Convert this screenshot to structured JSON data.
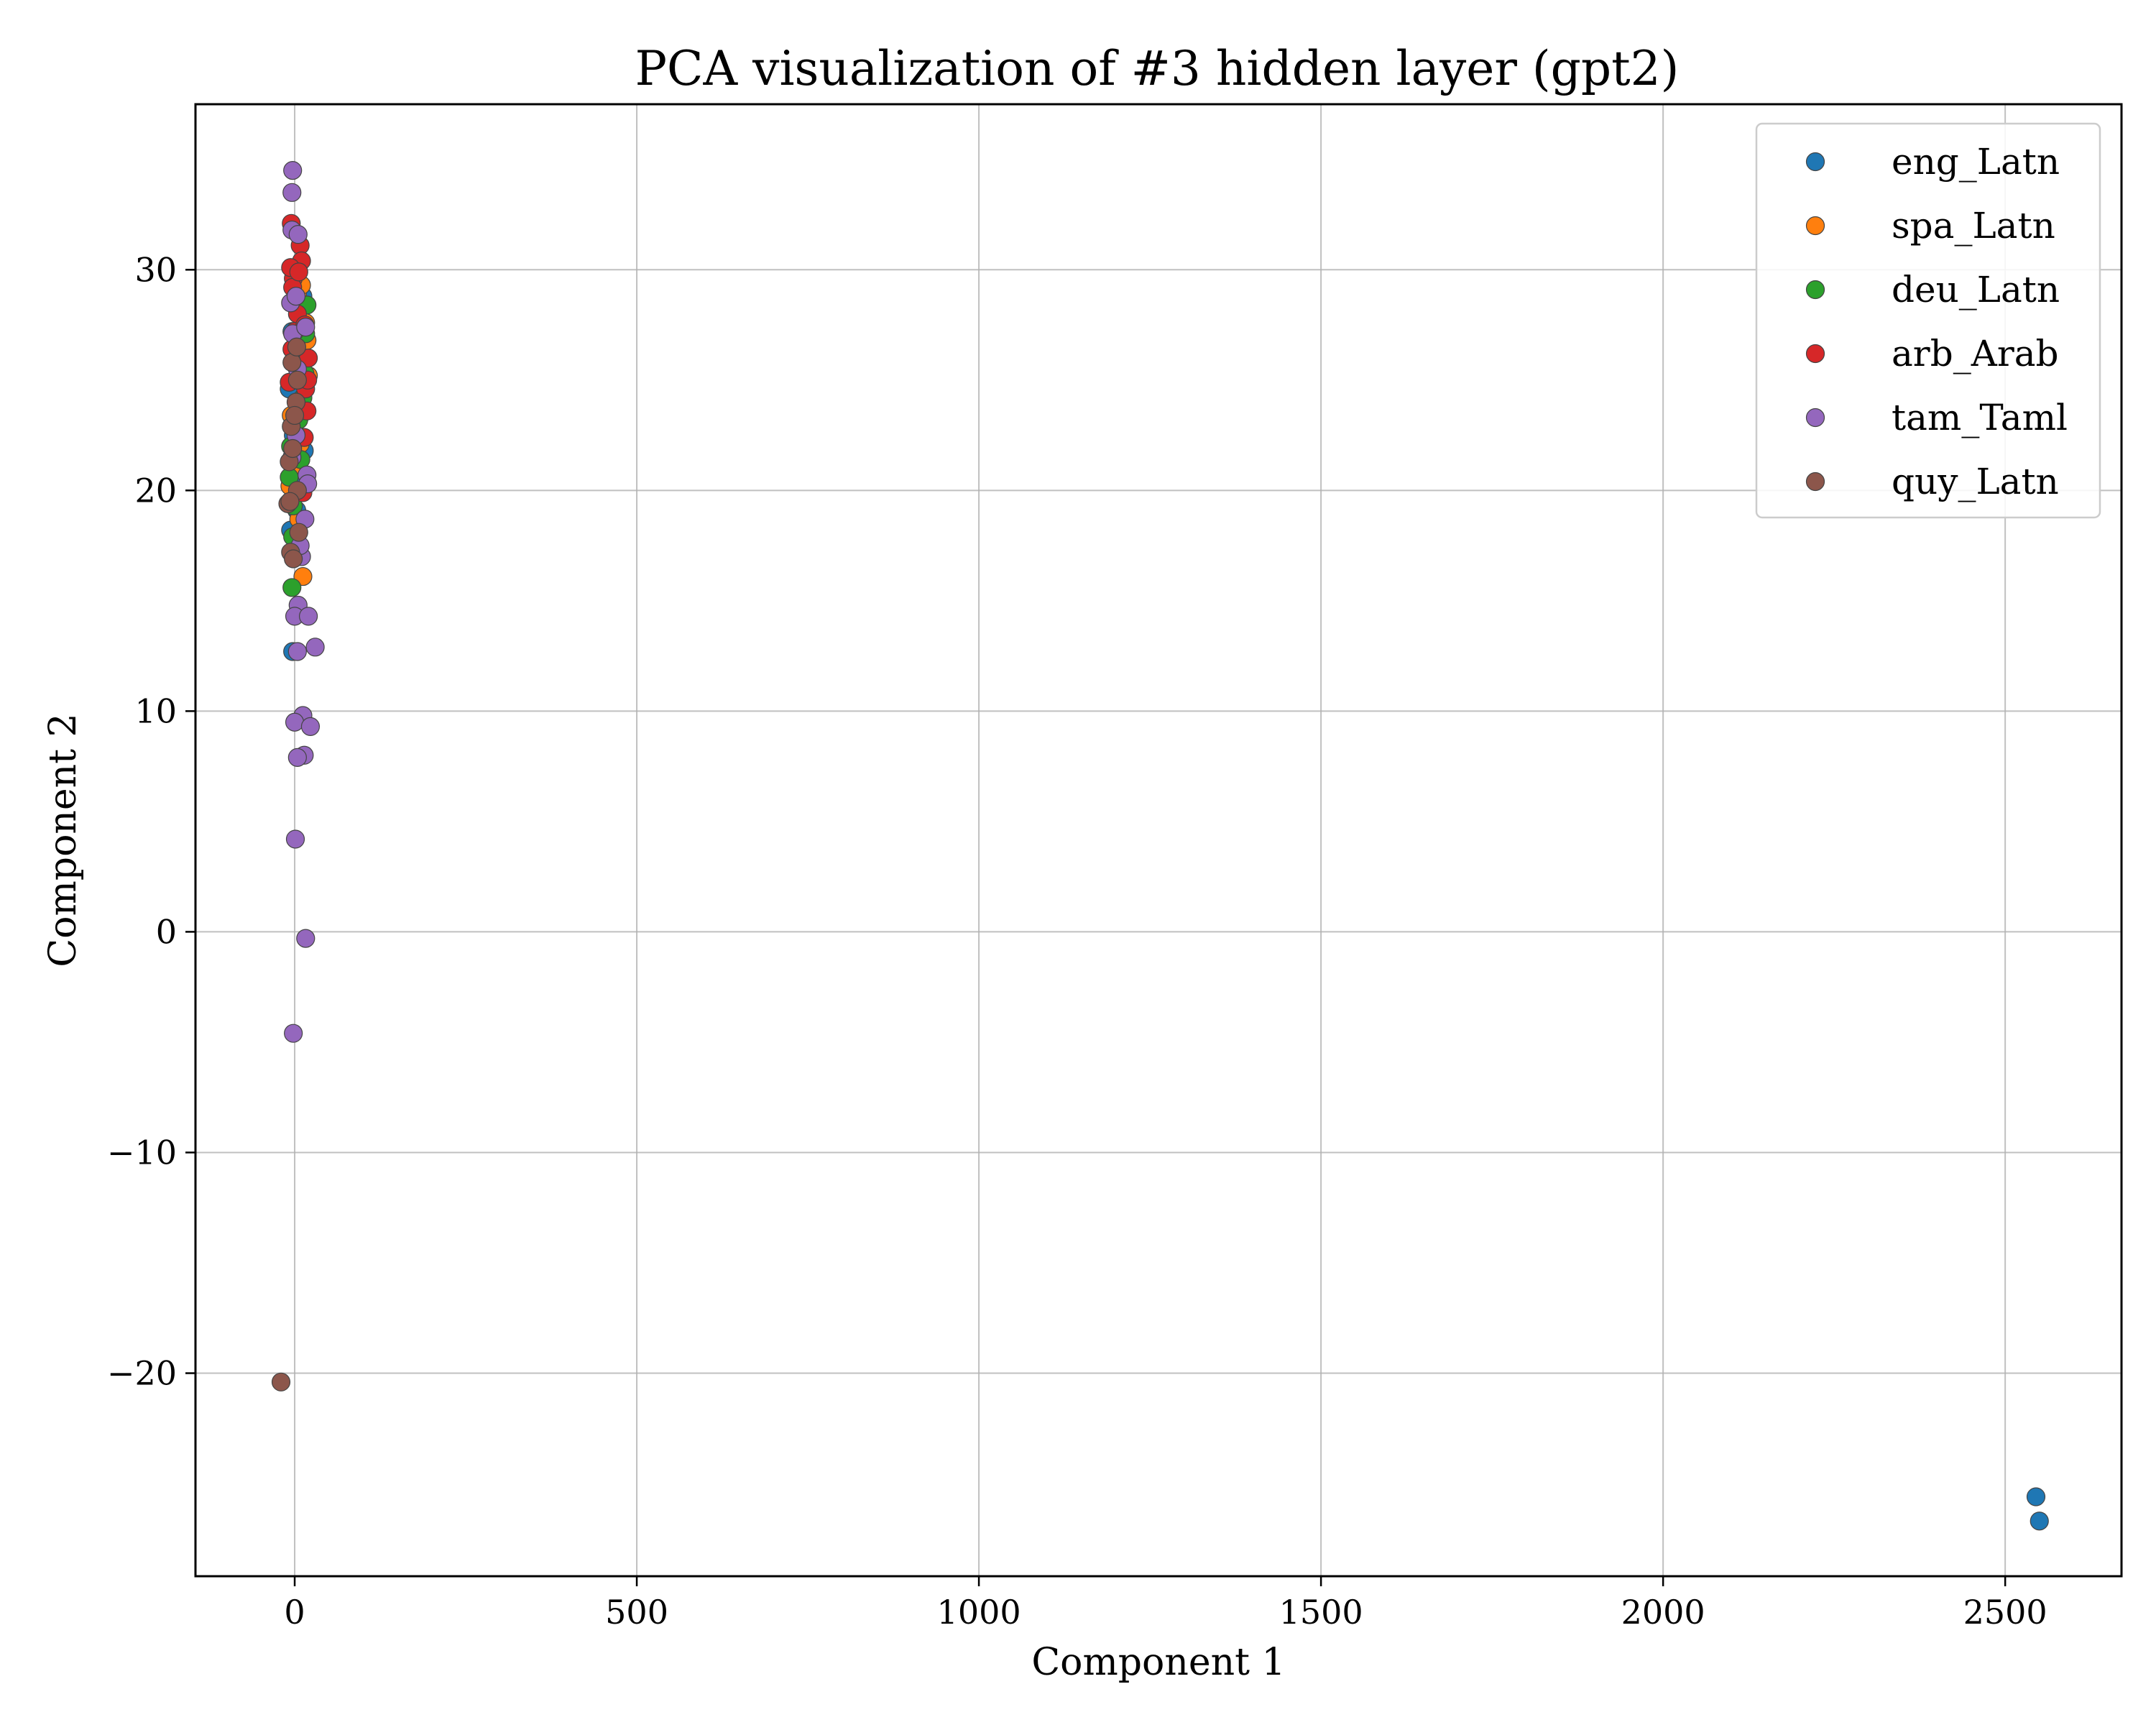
{
  "chart_data": {
    "type": "scatter",
    "title": "PCA visualization of #3 hidden layer (gpt2)",
    "xlabel": "Component 1",
    "ylabel": "Component 2",
    "xlim": [
      -145,
      2670
    ],
    "ylim": [
      -29.2,
      37.5
    ],
    "xticks": [
      0,
      500,
      1000,
      1500,
      2000,
      2500
    ],
    "xtick_labels": [
      "0",
      "500",
      "1000",
      "1500",
      "2000",
      "2500"
    ],
    "yticks": [
      -20,
      -10,
      0,
      10,
      20,
      30
    ],
    "ytick_labels": [
      "−20",
      "−10",
      "0",
      "10",
      "20",
      "30"
    ],
    "grid": true,
    "legend_position": "top-right",
    "series": [
      {
        "name": "eng_Latn",
        "color": "#1f77b4",
        "points": [
          [
            -6,
            18.2
          ],
          [
            -3,
            12.7
          ],
          [
            12,
            28.8
          ],
          [
            -2,
            22.5
          ],
          [
            5,
            20.3
          ],
          [
            -8,
            24.6
          ],
          [
            3,
            19.1
          ],
          [
            9,
            26.8
          ],
          [
            14,
            21.8
          ],
          [
            -4,
            27.2
          ],
          [
            2545,
            -25.6
          ],
          [
            2550,
            -26.7
          ]
        ]
      },
      {
        "name": "spa_Latn",
        "color": "#ff7f0e",
        "points": [
          [
            12,
            16.1
          ],
          [
            20,
            25.2
          ],
          [
            18,
            26.8
          ],
          [
            16,
            27.6
          ],
          [
            -5,
            23.4
          ],
          [
            4,
            28.9
          ],
          [
            8,
            22.1
          ],
          [
            10,
            29.3
          ],
          [
            -2,
            21.0
          ],
          [
            6,
            18.7
          ],
          [
            14,
            24.8
          ],
          [
            -7,
            20.2
          ]
        ]
      },
      {
        "name": "deu_Latn",
        "color": "#2ca02c",
        "points": [
          [
            -4,
            15.6
          ],
          [
            -8,
            20.6
          ],
          [
            18,
            28.4
          ],
          [
            15,
            25.3
          ],
          [
            -2,
            19.3
          ],
          [
            6,
            23.2
          ],
          [
            12,
            24.2
          ],
          [
            -6,
            22.0
          ],
          [
            2,
            26.1
          ],
          [
            9,
            21.4
          ],
          [
            -3,
            17.9
          ],
          [
            16,
            27.1
          ]
        ]
      },
      {
        "name": "arb_Arab",
        "color": "#d62728",
        "points": [
          [
            -5,
            32.1
          ],
          [
            8,
            31.1
          ],
          [
            -2,
            29.6
          ],
          [
            10,
            30.4
          ],
          [
            -6,
            30.1
          ],
          [
            18,
            23.6
          ],
          [
            20,
            26.0
          ],
          [
            16,
            24.6
          ],
          [
            -4,
            26.4
          ],
          [
            12,
            19.9
          ],
          [
            14,
            22.4
          ],
          [
            -8,
            24.9
          ],
          [
            4,
            28.0
          ],
          [
            0,
            27.2
          ],
          [
            -3,
            29.2
          ],
          [
            6,
            29.9
          ],
          [
            19,
            25.0
          ],
          [
            15,
            27.5
          ]
        ]
      },
      {
        "name": "tam_Taml",
        "color": "#9467bd",
        "points": [
          [
            -3,
            34.5
          ],
          [
            -4,
            33.5
          ],
          [
            -4,
            31.8
          ],
          [
            5,
            31.6
          ],
          [
            -6,
            28.5
          ],
          [
            2,
            28.8
          ],
          [
            -3,
            27.1
          ],
          [
            4,
            25.5
          ],
          [
            16,
            27.4
          ],
          [
            18,
            20.7
          ],
          [
            19,
            20.3
          ],
          [
            15,
            18.7
          ],
          [
            10,
            17.0
          ],
          [
            5,
            14.8
          ],
          [
            0,
            14.3
          ],
          [
            20,
            14.3
          ],
          [
            30,
            12.9
          ],
          [
            4,
            12.7
          ],
          [
            12,
            9.8
          ],
          [
            0,
            9.5
          ],
          [
            23,
            9.3
          ],
          [
            14,
            8.0
          ],
          [
            4,
            7.9
          ],
          [
            1,
            4.2
          ],
          [
            16,
            -0.3
          ],
          [
            -2,
            -4.6
          ],
          [
            2,
            22.5
          ],
          [
            8,
            17.5
          ],
          [
            -4,
            21.5
          ]
        ]
      },
      {
        "name": "quy_Latn",
        "color": "#8c564b",
        "points": [
          [
            -20,
            -20.4
          ],
          [
            -4,
            25.8
          ],
          [
            -5,
            22.9
          ],
          [
            2,
            24.0
          ],
          [
            0,
            23.4
          ],
          [
            4,
            20.0
          ],
          [
            -8,
            21.3
          ],
          [
            -10,
            19.4
          ],
          [
            -6,
            17.2
          ],
          [
            -2,
            16.9
          ],
          [
            6,
            18.1
          ],
          [
            4,
            25.0
          ],
          [
            -3,
            21.9
          ],
          [
            3,
            26.5
          ],
          [
            -7,
            19.5
          ]
        ]
      }
    ]
  }
}
